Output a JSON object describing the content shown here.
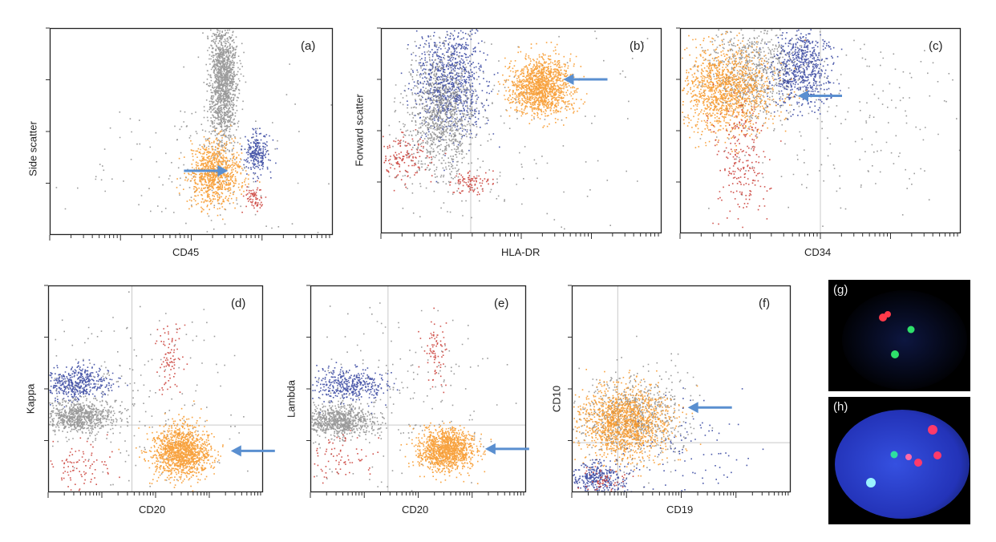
{
  "colors": {
    "orange": "#f7931e",
    "blue": "#2b3c9b",
    "gray": "#8a8a8a",
    "red": "#c8352e",
    "cyan": "#7fd6e6",
    "arrow": "#5a8fd0",
    "gate_line": "#c9c9c9",
    "fish_bg": "#000000",
    "nucleus": "#2a3fc8",
    "fish_red": "#ff3a4a",
    "fish_green": "#2ee06a"
  },
  "chart_data": [
    {
      "panel": "(a)",
      "type": "scatter",
      "xlabel": "CD45",
      "ylabel": "Side scatter",
      "xlim": [
        0,
        1
      ],
      "ylim": [
        0,
        1
      ],
      "grid": false,
      "populations": [
        {
          "color": "gray",
          "cx": 0.61,
          "cy": 0.75,
          "sx": 0.025,
          "sy": 0.16,
          "n": 1400
        },
        {
          "color": "orange",
          "cx": 0.58,
          "cy": 0.3,
          "sx": 0.045,
          "sy": 0.07,
          "n": 900
        },
        {
          "color": "blue",
          "cx": 0.73,
          "cy": 0.4,
          "sx": 0.022,
          "sy": 0.05,
          "n": 240
        },
        {
          "color": "red",
          "cx": 0.72,
          "cy": 0.18,
          "sx": 0.015,
          "sy": 0.03,
          "n": 70
        },
        {
          "color": "gray",
          "cx": 0.55,
          "cy": 0.3,
          "sx": 0.22,
          "sy": 0.2,
          "n": 160
        }
      ],
      "arrows": [
        {
          "x": 0.63,
          "y": 0.31,
          "direction": "right"
        }
      ]
    },
    {
      "panel": "(b)",
      "type": "scatter",
      "xlabel": "HLA-DR",
      "ylabel": "Forward scatter",
      "xlim": [
        0,
        1
      ],
      "ylim": [
        0,
        1
      ],
      "grid": false,
      "gates": {
        "vertical": 0.32,
        "horizontal": null
      },
      "populations": [
        {
          "color": "blue",
          "cx": 0.24,
          "cy": 0.74,
          "sx": 0.06,
          "sy": 0.13,
          "n": 900
        },
        {
          "color": "gray",
          "cx": 0.21,
          "cy": 0.57,
          "sx": 0.06,
          "sy": 0.16,
          "n": 1000
        },
        {
          "color": "orange",
          "cx": 0.57,
          "cy": 0.72,
          "sx": 0.055,
          "sy": 0.07,
          "n": 1300
        },
        {
          "color": "red",
          "cx": 0.08,
          "cy": 0.37,
          "sx": 0.05,
          "sy": 0.06,
          "n": 150
        },
        {
          "color": "red",
          "cx": 0.32,
          "cy": 0.25,
          "sx": 0.04,
          "sy": 0.03,
          "n": 90
        },
        {
          "color": "gray",
          "cx": 0.35,
          "cy": 0.5,
          "sx": 0.3,
          "sy": 0.3,
          "n": 220
        }
      ],
      "arrows": [
        {
          "x": 0.65,
          "y": 0.75,
          "direction": "left"
        }
      ]
    },
    {
      "panel": "(c)",
      "type": "scatter",
      "xlabel": "CD34",
      "ylabel": "",
      "xlim": [
        0,
        1
      ],
      "ylim": [
        0,
        1
      ],
      "grid": false,
      "gates": {
        "vertical": 0.5,
        "horizontal": null
      },
      "populations": [
        {
          "color": "gray",
          "cx": 0.26,
          "cy": 0.8,
          "sx": 0.08,
          "sy": 0.12,
          "n": 700
        },
        {
          "color": "blue",
          "cx": 0.43,
          "cy": 0.8,
          "sx": 0.05,
          "sy": 0.1,
          "n": 650
        },
        {
          "color": "orange",
          "cx": 0.16,
          "cy": 0.7,
          "sx": 0.08,
          "sy": 0.1,
          "n": 1300
        },
        {
          "color": "red",
          "cx": 0.22,
          "cy": 0.36,
          "sx": 0.05,
          "sy": 0.13,
          "n": 220
        },
        {
          "color": "gray",
          "cx": 0.6,
          "cy": 0.55,
          "sx": 0.25,
          "sy": 0.25,
          "n": 200
        }
      ],
      "arrows": [
        {
          "x": 0.42,
          "y": 0.67,
          "direction": "left"
        }
      ]
    },
    {
      "panel": "(d)",
      "type": "scatter",
      "xlabel": "CD20",
      "ylabel": "Kappa",
      "xlim": [
        0,
        1
      ],
      "ylim": [
        0,
        1
      ],
      "grid": false,
      "gates": {
        "vertical": 0.39,
        "horizontal": 0.325
      },
      "populations": [
        {
          "color": "blue",
          "cx": 0.13,
          "cy": 0.53,
          "sx": 0.08,
          "sy": 0.04,
          "n": 450
        },
        {
          "color": "gray",
          "cx": 0.14,
          "cy": 0.37,
          "sx": 0.09,
          "sy": 0.04,
          "n": 800
        },
        {
          "color": "orange",
          "cx": 0.62,
          "cy": 0.2,
          "sx": 0.065,
          "sy": 0.06,
          "n": 1300
        },
        {
          "color": "red",
          "cx": 0.56,
          "cy": 0.65,
          "sx": 0.035,
          "sy": 0.08,
          "n": 90
        },
        {
          "color": "red",
          "cx": 0.13,
          "cy": 0.14,
          "sx": 0.08,
          "sy": 0.06,
          "n": 90
        },
        {
          "color": "gray",
          "cx": 0.4,
          "cy": 0.45,
          "sx": 0.25,
          "sy": 0.25,
          "n": 200
        }
      ],
      "arrows": [
        {
          "x": 0.85,
          "y": 0.2,
          "direction": "left"
        }
      ]
    },
    {
      "panel": "(e)",
      "type": "scatter",
      "xlabel": "CD20",
      "ylabel": "Lambda",
      "xlim": [
        0,
        1
      ],
      "ylim": [
        0,
        1
      ],
      "grid": false,
      "gates": {
        "vertical": 0.36,
        "horizontal": 0.325
      },
      "populations": [
        {
          "color": "blue",
          "cx": 0.17,
          "cy": 0.52,
          "sx": 0.08,
          "sy": 0.04,
          "n": 400
        },
        {
          "color": "gray",
          "cx": 0.13,
          "cy": 0.35,
          "sx": 0.09,
          "sy": 0.04,
          "n": 800
        },
        {
          "color": "orange",
          "cx": 0.63,
          "cy": 0.21,
          "sx": 0.065,
          "sy": 0.05,
          "n": 1200
        },
        {
          "color": "red",
          "cx": 0.57,
          "cy": 0.68,
          "sx": 0.03,
          "sy": 0.08,
          "n": 80
        },
        {
          "color": "red",
          "cx": 0.13,
          "cy": 0.17,
          "sx": 0.08,
          "sy": 0.06,
          "n": 80
        },
        {
          "color": "gray",
          "cx": 0.4,
          "cy": 0.45,
          "sx": 0.25,
          "sy": 0.25,
          "n": 200
        }
      ],
      "arrows": [
        {
          "x": 0.81,
          "y": 0.21,
          "direction": "left"
        }
      ]
    },
    {
      "panel": "(f)",
      "type": "scatter",
      "xlabel": "CD19",
      "ylabel": "CD10",
      "xlim": [
        0,
        1
      ],
      "ylim": [
        0,
        1
      ],
      "grid": false,
      "gates": {
        "vertical": 0.21,
        "horizontal": 0.24
      },
      "populations": [
        {
          "color": "gray",
          "cx": 0.28,
          "cy": 0.37,
          "sx": 0.12,
          "sy": 0.1,
          "n": 700
        },
        {
          "color": "orange",
          "cx": 0.24,
          "cy": 0.34,
          "sx": 0.11,
          "sy": 0.09,
          "n": 1400
        },
        {
          "color": "blue",
          "cx": 0.12,
          "cy": 0.07,
          "sx": 0.06,
          "sy": 0.04,
          "n": 350
        },
        {
          "color": "red",
          "cx": 0.15,
          "cy": 0.06,
          "sx": 0.05,
          "sy": 0.03,
          "n": 60
        },
        {
          "color": "blue",
          "cx": 0.55,
          "cy": 0.2,
          "sx": 0.15,
          "sy": 0.15,
          "n": 90
        }
      ],
      "arrows": [
        {
          "x": 0.53,
          "y": 0.41,
          "direction": "left"
        }
      ]
    }
  ],
  "fish_panels": [
    {
      "letter": "(g)"
    },
    {
      "letter": "(h)"
    }
  ]
}
